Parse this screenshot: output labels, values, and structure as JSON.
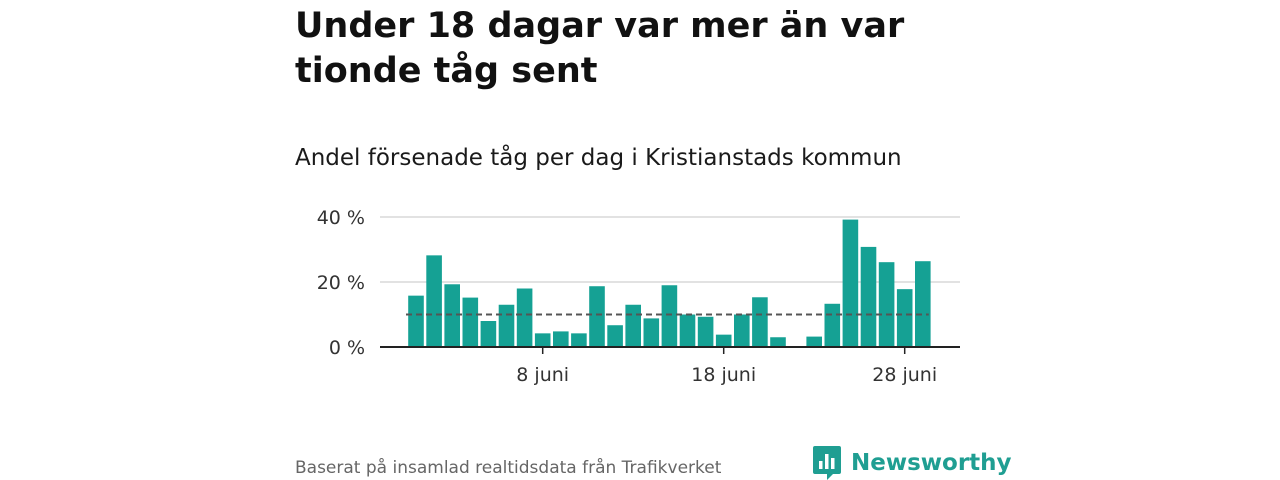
{
  "title": "Under 18 dagar var mer än var tionde tåg sent",
  "subtitle": "Andel försenade tåg per dag i Kristianstads kommun",
  "footer": "Baserat på insamlad realtidsdata från Trafikverket",
  "brand": "Newsworthy",
  "colors": {
    "bar": "#15a194",
    "baseline": "#555555",
    "grid": "#d9d9d9",
    "brand": "#1f9e92"
  },
  "chart_data": {
    "type": "bar",
    "x_type": "date",
    "categories": [
      "2023-06-01",
      "2023-06-02",
      "2023-06-03",
      "2023-06-04",
      "2023-06-05",
      "2023-06-06",
      "2023-06-07",
      "2023-06-08",
      "2023-06-09",
      "2023-06-10",
      "2023-06-11",
      "2023-06-12",
      "2023-06-13",
      "2023-06-14",
      "2023-06-15",
      "2023-06-16",
      "2023-06-17",
      "2023-06-18",
      "2023-06-19",
      "2023-06-20",
      "2023-06-21",
      "2023-06-22",
      "2023-06-23",
      "2023-06-24",
      "2023-06-25",
      "2023-06-26",
      "2023-06-27",
      "2023-06-28",
      "2023-06-29"
    ],
    "values": [
      15.8,
      28.2,
      19.3,
      15.2,
      8.0,
      13.0,
      18.0,
      4.2,
      4.8,
      4.2,
      18.7,
      6.7,
      13.0,
      8.8,
      19.0,
      10.0,
      9.3,
      3.8,
      10.0,
      15.3,
      3.0,
      null,
      3.2,
      13.3,
      39.2,
      30.8,
      26.1,
      17.8,
      26.4
    ],
    "reference_line": 10,
    "reference_line_style": "dashed",
    "ylim": [
      0,
      40
    ],
    "yticks": [
      0,
      20,
      40
    ],
    "ytick_labels": [
      "0 %",
      "20 %",
      "40 %"
    ],
    "xticks": [
      "2023-06-08",
      "2023-06-18",
      "2023-06-28"
    ],
    "xtick_labels": [
      "8 juni",
      "18 juni",
      "28 juni"
    ],
    "grid": true,
    "legend": "none"
  }
}
